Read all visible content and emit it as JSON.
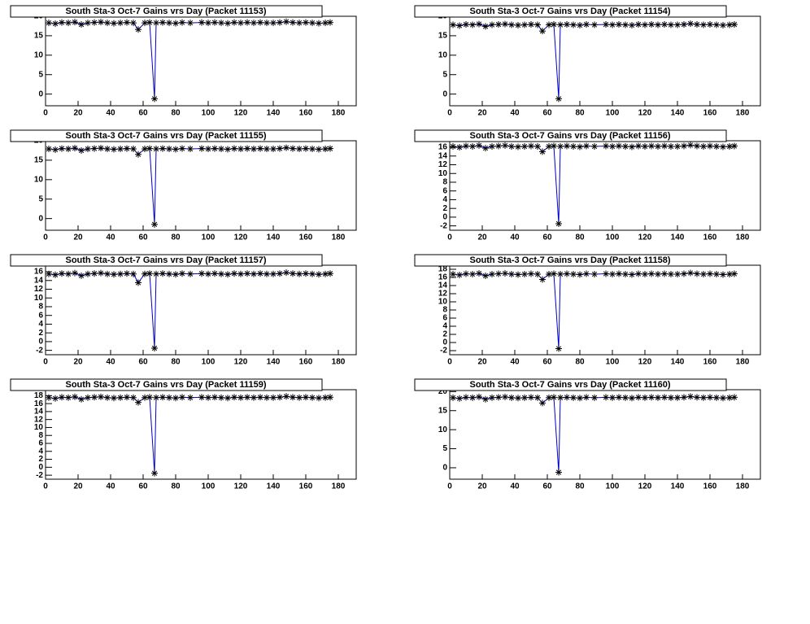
{
  "chart_data": [
    {
      "type": "line",
      "title": "South Sta-3 Oct-7 Gains vrs Day (Packet 11153)",
      "color": "#0000cc",
      "marker_color": "#000000",
      "x": [
        2,
        6,
        10,
        14,
        18,
        22,
        26,
        30,
        34,
        38,
        42,
        46,
        50,
        54,
        57,
        61,
        64,
        67,
        68,
        72,
        76,
        80,
        84,
        89,
        96,
        100,
        104,
        108,
        112,
        116,
        120,
        124,
        128,
        132,
        136,
        140,
        144,
        148,
        152,
        156,
        160,
        164,
        168,
        172,
        175
      ],
      "values": [
        18.3,
        18.1,
        18.4,
        18.3,
        18.5,
        17.9,
        18.3,
        18.4,
        18.5,
        18.3,
        18.2,
        18.3,
        18.4,
        18.3,
        16.6,
        18.3,
        18.4,
        -1.2,
        18.3,
        18.4,
        18.3,
        18.2,
        18.4,
        18.3,
        18.4,
        18.3,
        18.4,
        18.3,
        18.2,
        18.4,
        18.3,
        18.4,
        18.3,
        18.4,
        18.3,
        18.3,
        18.4,
        18.6,
        18.4,
        18.3,
        18.4,
        18.3,
        18.2,
        18.3,
        18.4
      ],
      "xlim": [
        0,
        191
      ],
      "xticks": [
        0,
        20,
        40,
        60,
        80,
        100,
        120,
        140,
        160,
        180
      ],
      "ylim": [
        -3,
        20
      ],
      "yticks": [
        0,
        5,
        10,
        15,
        20
      ]
    },
    {
      "type": "line",
      "title": "South Sta-3 Oct-7 Gains vrs Day (Packet 11154)",
      "color": "#0000cc",
      "marker_color": "#000000",
      "x": [
        2,
        6,
        10,
        14,
        18,
        22,
        26,
        30,
        34,
        38,
        42,
        46,
        50,
        54,
        57,
        61,
        64,
        67,
        68,
        72,
        76,
        80,
        84,
        89,
        96,
        100,
        104,
        108,
        112,
        116,
        120,
        124,
        128,
        132,
        136,
        140,
        144,
        148,
        152,
        156,
        160,
        164,
        168,
        172,
        175
      ],
      "values": [
        17.8,
        17.6,
        17.9,
        17.8,
        18.0,
        17.4,
        17.8,
        17.9,
        18.0,
        17.8,
        17.7,
        17.8,
        17.9,
        17.8,
        16.2,
        17.8,
        17.9,
        -1.2,
        17.8,
        17.9,
        17.8,
        17.7,
        17.9,
        17.8,
        17.9,
        17.8,
        17.9,
        17.8,
        17.7,
        17.9,
        17.8,
        17.9,
        17.8,
        17.9,
        17.8,
        17.8,
        17.9,
        18.1,
        17.9,
        17.8,
        17.9,
        17.8,
        17.7,
        17.8,
        17.9
      ],
      "xlim": [
        0,
        191
      ],
      "xticks": [
        0,
        20,
        40,
        60,
        80,
        100,
        120,
        140,
        160,
        180
      ],
      "ylim": [
        -3,
        20
      ],
      "yticks": [
        0,
        5,
        10,
        15,
        20
      ]
    },
    {
      "type": "line",
      "title": "South Sta-3 Oct-7 Gains vrs Day (Packet 11155)",
      "color": "#0000cc",
      "marker_color": "#000000",
      "x": [
        2,
        6,
        10,
        14,
        18,
        22,
        26,
        30,
        34,
        38,
        42,
        46,
        50,
        54,
        57,
        61,
        64,
        67,
        68,
        72,
        76,
        80,
        84,
        89,
        96,
        100,
        104,
        108,
        112,
        116,
        120,
        124,
        128,
        132,
        136,
        140,
        144,
        148,
        152,
        156,
        160,
        164,
        168,
        172,
        175
      ],
      "values": [
        17.9,
        17.7,
        18.0,
        17.9,
        18.1,
        17.5,
        17.9,
        18.0,
        18.1,
        17.9,
        17.8,
        17.9,
        18.0,
        17.9,
        16.5,
        17.9,
        18.0,
        -1.5,
        17.9,
        18.0,
        17.9,
        17.8,
        18.0,
        17.9,
        18.0,
        17.9,
        18.0,
        17.9,
        17.8,
        18.0,
        17.9,
        18.0,
        17.9,
        18.0,
        17.9,
        17.9,
        18.0,
        18.2,
        18.0,
        17.9,
        18.0,
        17.9,
        17.8,
        17.9,
        18.0
      ],
      "xlim": [
        0,
        191
      ],
      "xticks": [
        0,
        20,
        40,
        60,
        80,
        100,
        120,
        140,
        160,
        180
      ],
      "ylim": [
        -3,
        20
      ],
      "yticks": [
        0,
        5,
        10,
        15,
        20
      ]
    },
    {
      "type": "line",
      "title": "South Sta-3 Oct-7 Gains vrs Day (Packet 11156)",
      "color": "#0000cc",
      "marker_color": "#000000",
      "x": [
        2,
        6,
        10,
        14,
        18,
        22,
        26,
        30,
        34,
        38,
        42,
        46,
        50,
        54,
        57,
        61,
        64,
        67,
        68,
        72,
        76,
        80,
        84,
        89,
        96,
        100,
        104,
        108,
        112,
        116,
        120,
        124,
        128,
        132,
        136,
        140,
        144,
        148,
        152,
        156,
        160,
        164,
        168,
        172,
        175
      ],
      "values": [
        16.2,
        16.0,
        16.3,
        16.2,
        16.4,
        15.8,
        16.2,
        16.3,
        16.4,
        16.2,
        16.1,
        16.2,
        16.3,
        16.2,
        15.0,
        16.2,
        16.3,
        -1.5,
        16.2,
        16.3,
        16.2,
        16.1,
        16.3,
        16.2,
        16.3,
        16.2,
        16.3,
        16.2,
        16.1,
        16.3,
        16.2,
        16.3,
        16.2,
        16.3,
        16.2,
        16.2,
        16.3,
        16.5,
        16.3,
        16.2,
        16.3,
        16.2,
        16.1,
        16.2,
        16.3
      ],
      "xlim": [
        0,
        191
      ],
      "xticks": [
        0,
        20,
        40,
        60,
        80,
        100,
        120,
        140,
        160,
        180
      ],
      "ylim": [
        -3,
        17.5
      ],
      "yticks": [
        -2,
        0,
        2,
        4,
        6,
        8,
        10,
        12,
        14,
        16
      ]
    },
    {
      "type": "line",
      "title": "South Sta-3 Oct-7 Gains vrs Day (Packet 11157)",
      "color": "#0000cc",
      "marker_color": "#000000",
      "x": [
        2,
        6,
        10,
        14,
        18,
        22,
        26,
        30,
        34,
        38,
        42,
        46,
        50,
        54,
        57,
        61,
        64,
        67,
        68,
        72,
        76,
        80,
        84,
        89,
        96,
        100,
        104,
        108,
        112,
        116,
        120,
        124,
        128,
        132,
        136,
        140,
        144,
        148,
        152,
        156,
        160,
        164,
        168,
        172,
        175
      ],
      "values": [
        15.5,
        15.3,
        15.6,
        15.5,
        15.7,
        15.1,
        15.5,
        15.6,
        15.7,
        15.5,
        15.4,
        15.5,
        15.6,
        15.5,
        13.5,
        15.5,
        15.6,
        -1.5,
        15.5,
        15.6,
        15.5,
        15.4,
        15.6,
        15.5,
        15.6,
        15.5,
        15.6,
        15.5,
        15.4,
        15.6,
        15.5,
        15.6,
        15.5,
        15.6,
        15.5,
        15.5,
        15.6,
        15.8,
        15.6,
        15.5,
        15.6,
        15.5,
        15.4,
        15.5,
        15.6
      ],
      "xlim": [
        0,
        191
      ],
      "xticks": [
        0,
        20,
        40,
        60,
        80,
        100,
        120,
        140,
        160,
        180
      ],
      "ylim": [
        -3,
        17.5
      ],
      "yticks": [
        -2,
        0,
        2,
        4,
        6,
        8,
        10,
        12,
        14,
        16
      ]
    },
    {
      "type": "line",
      "title": "South Sta-3 Oct-7 Gains vrs Day (Packet 11158)",
      "color": "#0000cc",
      "marker_color": "#000000",
      "x": [
        2,
        6,
        10,
        14,
        18,
        22,
        26,
        30,
        34,
        38,
        42,
        46,
        50,
        54,
        57,
        61,
        64,
        67,
        68,
        72,
        76,
        80,
        84,
        89,
        96,
        100,
        104,
        108,
        112,
        116,
        120,
        124,
        128,
        132,
        136,
        140,
        144,
        148,
        152,
        156,
        160,
        164,
        168,
        172,
        175
      ],
      "values": [
        16.8,
        16.6,
        16.9,
        16.8,
        17.0,
        16.4,
        16.8,
        16.9,
        17.0,
        16.8,
        16.7,
        16.8,
        16.9,
        16.8,
        15.5,
        16.8,
        16.9,
        -1.5,
        16.8,
        16.9,
        16.8,
        16.7,
        16.9,
        16.8,
        16.9,
        16.8,
        16.9,
        16.8,
        16.7,
        16.9,
        16.8,
        16.9,
        16.8,
        16.9,
        16.8,
        16.8,
        16.9,
        17.1,
        16.9,
        16.8,
        16.9,
        16.8,
        16.7,
        16.8,
        16.9
      ],
      "xlim": [
        0,
        191
      ],
      "xticks": [
        0,
        20,
        40,
        60,
        80,
        100,
        120,
        140,
        160,
        180
      ],
      "ylim": [
        -3,
        19
      ],
      "yticks": [
        -2,
        0,
        2,
        4,
        6,
        8,
        10,
        12,
        14,
        16,
        18
      ]
    },
    {
      "type": "line",
      "title": "South Sta-3 Oct-7 Gains vrs Day (Packet 11159)",
      "color": "#0000cc",
      "marker_color": "#000000",
      "x": [
        2,
        6,
        10,
        14,
        18,
        22,
        26,
        30,
        34,
        38,
        42,
        46,
        50,
        54,
        57,
        61,
        64,
        67,
        68,
        72,
        76,
        80,
        84,
        89,
        96,
        100,
        104,
        108,
        112,
        116,
        120,
        124,
        128,
        132,
        136,
        140,
        144,
        148,
        152,
        156,
        160,
        164,
        168,
        172,
        175
      ],
      "values": [
        17.5,
        17.3,
        17.6,
        17.5,
        17.7,
        17.1,
        17.5,
        17.6,
        17.7,
        17.5,
        17.4,
        17.5,
        17.6,
        17.5,
        16.3,
        17.5,
        17.6,
        -1.5,
        17.5,
        17.6,
        17.5,
        17.4,
        17.6,
        17.5,
        17.6,
        17.5,
        17.6,
        17.5,
        17.4,
        17.6,
        17.5,
        17.6,
        17.5,
        17.6,
        17.5,
        17.5,
        17.6,
        17.8,
        17.6,
        17.5,
        17.6,
        17.5,
        17.4,
        17.5,
        17.6
      ],
      "xlim": [
        0,
        191
      ],
      "xticks": [
        0,
        20,
        40,
        60,
        80,
        100,
        120,
        140,
        160,
        180
      ],
      "ylim": [
        -3,
        19.5
      ],
      "yticks": [
        -2,
        0,
        2,
        4,
        6,
        8,
        10,
        12,
        14,
        16,
        18
      ]
    },
    {
      "type": "line",
      "title": "South Sta-3 Oct-7 Gains vrs Day (Packet 11160)",
      "color": "#0000cc",
      "marker_color": "#000000",
      "x": [
        2,
        6,
        10,
        14,
        18,
        22,
        26,
        30,
        34,
        38,
        42,
        46,
        50,
        54,
        57,
        61,
        64,
        67,
        68,
        72,
        76,
        80,
        84,
        89,
        96,
        100,
        104,
        108,
        112,
        116,
        120,
        124,
        128,
        132,
        136,
        140,
        144,
        148,
        152,
        156,
        160,
        164,
        168,
        172,
        175
      ],
      "values": [
        18.4,
        18.2,
        18.5,
        18.4,
        18.6,
        18.0,
        18.4,
        18.5,
        18.6,
        18.4,
        18.3,
        18.4,
        18.5,
        18.4,
        17.0,
        18.4,
        18.5,
        -1.2,
        18.4,
        18.5,
        18.4,
        18.3,
        18.5,
        18.4,
        18.5,
        18.4,
        18.5,
        18.4,
        18.3,
        18.5,
        18.4,
        18.5,
        18.4,
        18.5,
        18.4,
        18.4,
        18.5,
        18.7,
        18.5,
        18.4,
        18.5,
        18.4,
        18.3,
        18.4,
        18.5
      ],
      "xlim": [
        0,
        191
      ],
      "xticks": [
        0,
        20,
        40,
        60,
        80,
        100,
        120,
        140,
        160,
        180
      ],
      "ylim": [
        -3,
        20.5
      ],
      "yticks": [
        0,
        5,
        10,
        15,
        20
      ]
    }
  ]
}
